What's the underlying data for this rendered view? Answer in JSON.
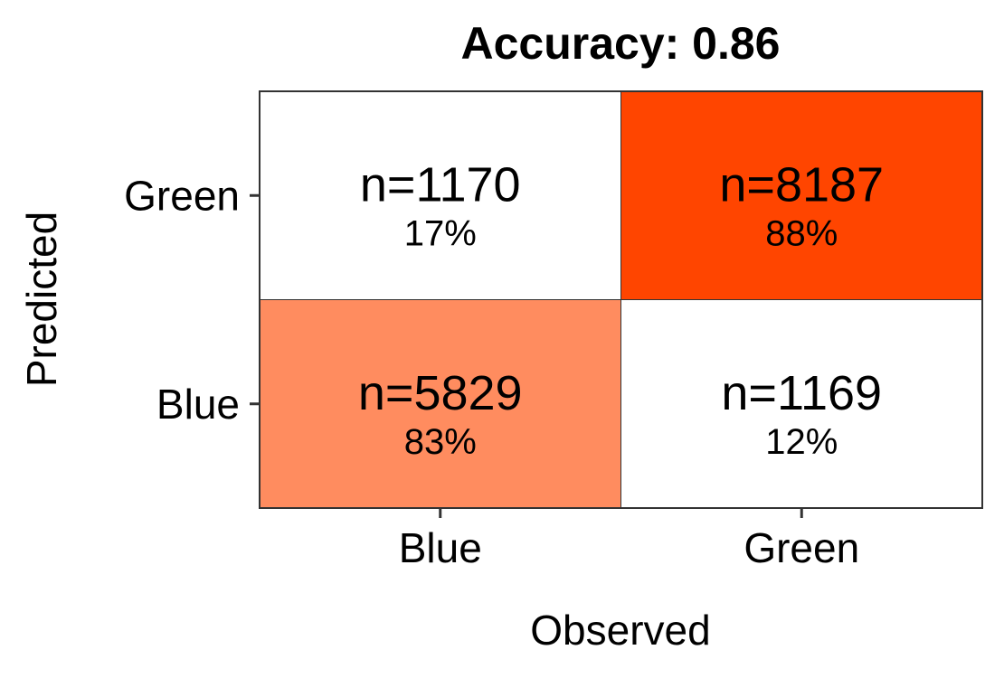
{
  "chart_data": {
    "type": "heatmap",
    "title": "Accuracy: 0.86",
    "xlabel": "Observed",
    "ylabel": "Predicted",
    "x_categories": [
      "Blue",
      "Green"
    ],
    "y_categories": [
      "Blue",
      "Green"
    ],
    "cells": [
      {
        "observed": "Blue",
        "predicted": "Green",
        "count_label": "n=1170",
        "count": 1170,
        "percent_label": "17%",
        "percent": 17,
        "color": "#ffffff"
      },
      {
        "observed": "Green",
        "predicted": "Green",
        "count_label": "n=8187",
        "count": 8187,
        "percent_label": "88%",
        "percent": 88,
        "color": "#ff4500"
      },
      {
        "observed": "Blue",
        "predicted": "Blue",
        "count_label": "n=5829",
        "count": 5829,
        "percent_label": "83%",
        "percent": 83,
        "color": "#ff8c5f"
      },
      {
        "observed": "Green",
        "predicted": "Blue",
        "count_label": "n=1169",
        "count": 1169,
        "percent_label": "12%",
        "percent": 12,
        "color": "#ffffff"
      }
    ],
    "grid": false,
    "legend": "none"
  }
}
